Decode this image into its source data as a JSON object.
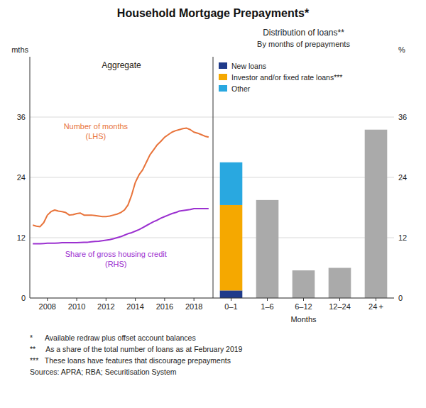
{
  "chart_data": [
    {
      "type": "line",
      "title": "Household Mortgage Prepayments*",
      "subtitle": "Aggregate",
      "ylabel": "mths",
      "x": [
        2007.0,
        2007.25,
        2007.5,
        2007.75,
        2008.0,
        2008.25,
        2008.5,
        2008.75,
        2009.0,
        2009.25,
        2009.5,
        2009.75,
        2010.0,
        2010.25,
        2010.5,
        2010.75,
        2011.0,
        2011.25,
        2011.5,
        2011.75,
        2012.0,
        2012.25,
        2012.5,
        2012.75,
        2013.0,
        2013.25,
        2013.5,
        2013.75,
        2014.0,
        2014.25,
        2014.5,
        2014.75,
        2015.0,
        2015.25,
        2015.5,
        2015.75,
        2016.0,
        2016.25,
        2016.5,
        2016.75,
        2017.0,
        2017.25,
        2017.5,
        2017.75,
        2018.0,
        2018.25,
        2018.5,
        2018.75,
        2019.0
      ],
      "xlim": [
        2006.8,
        2019.3
      ],
      "xticks": [
        2008,
        2010,
        2012,
        2014,
        2016,
        2018
      ],
      "ylim": [
        0,
        48
      ],
      "yticks": [
        0,
        12,
        24,
        36
      ],
      "grid": true,
      "series": [
        {
          "name": "Number of months",
          "note": "(LHS)",
          "color": "#E8733A",
          "values": [
            14.5,
            14.3,
            14.2,
            15.0,
            16.5,
            17.2,
            17.5,
            17.3,
            17.2,
            17.0,
            16.5,
            16.6,
            16.8,
            16.9,
            16.5,
            16.5,
            16.5,
            16.4,
            16.3,
            16.2,
            16.2,
            16.3,
            16.5,
            16.7,
            17.0,
            17.5,
            18.5,
            20.5,
            23.0,
            24.5,
            25.5,
            27.0,
            28.5,
            29.5,
            30.5,
            31.2,
            32.0,
            32.5,
            33.0,
            33.3,
            33.5,
            33.7,
            33.8,
            33.5,
            33.0,
            32.8,
            32.5,
            32.2,
            32.0
          ]
        },
        {
          "name": "Share of gross housing credit",
          "note": "(RHS)",
          "color": "#9B30D0",
          "values": [
            10.8,
            10.8,
            10.8,
            10.85,
            10.9,
            10.9,
            10.9,
            10.95,
            11.0,
            11.0,
            11.0,
            11.0,
            11.0,
            11.05,
            11.1,
            11.1,
            11.2,
            11.25,
            11.3,
            11.4,
            11.5,
            11.6,
            11.8,
            12.0,
            12.2,
            12.5,
            12.8,
            13.0,
            13.3,
            13.6,
            14.0,
            14.4,
            14.8,
            15.2,
            15.5,
            15.9,
            16.2,
            16.5,
            16.8,
            17.0,
            17.3,
            17.4,
            17.5,
            17.6,
            17.8,
            17.8,
            17.8,
            17.8,
            17.8
          ]
        }
      ],
      "annotations": [
        "*      Available redraw plus offset account balances",
        "**     As a share of the total number of loans as at February 2019",
        "***   These loans have features that discourage prepayments",
        "Sources: APRA; RBA; Securitisation System"
      ]
    },
    {
      "type": "bar",
      "stacked": true,
      "title": "Distribution of loans**",
      "subtitle": "By months of prepayments",
      "xlabel": "Months",
      "ylabel": "%",
      "categories": [
        "0–1",
        "1–6",
        "6–12",
        "12–24",
        "24 +"
      ],
      "ylim": [
        0,
        48
      ],
      "yticks": [
        0,
        12,
        24,
        36
      ],
      "grid": true,
      "legend": "upper left",
      "series": [
        {
          "name": "New loans",
          "color": "#1F3A8A",
          "values": [
            1.5,
            0,
            0,
            0,
            0
          ]
        },
        {
          "name": "Investor and/or fixed rate loans***",
          "color": "#F5A800",
          "values": [
            17.0,
            0,
            0,
            0,
            0
          ]
        },
        {
          "name": "Other",
          "color": "#29A8E0",
          "values": [
            8.5,
            0,
            0,
            0,
            0
          ]
        },
        {
          "color": "#AAAAAA",
          "values": [
            0,
            19.5,
            5.5,
            6.0,
            33.5
          ]
        }
      ]
    }
  ]
}
